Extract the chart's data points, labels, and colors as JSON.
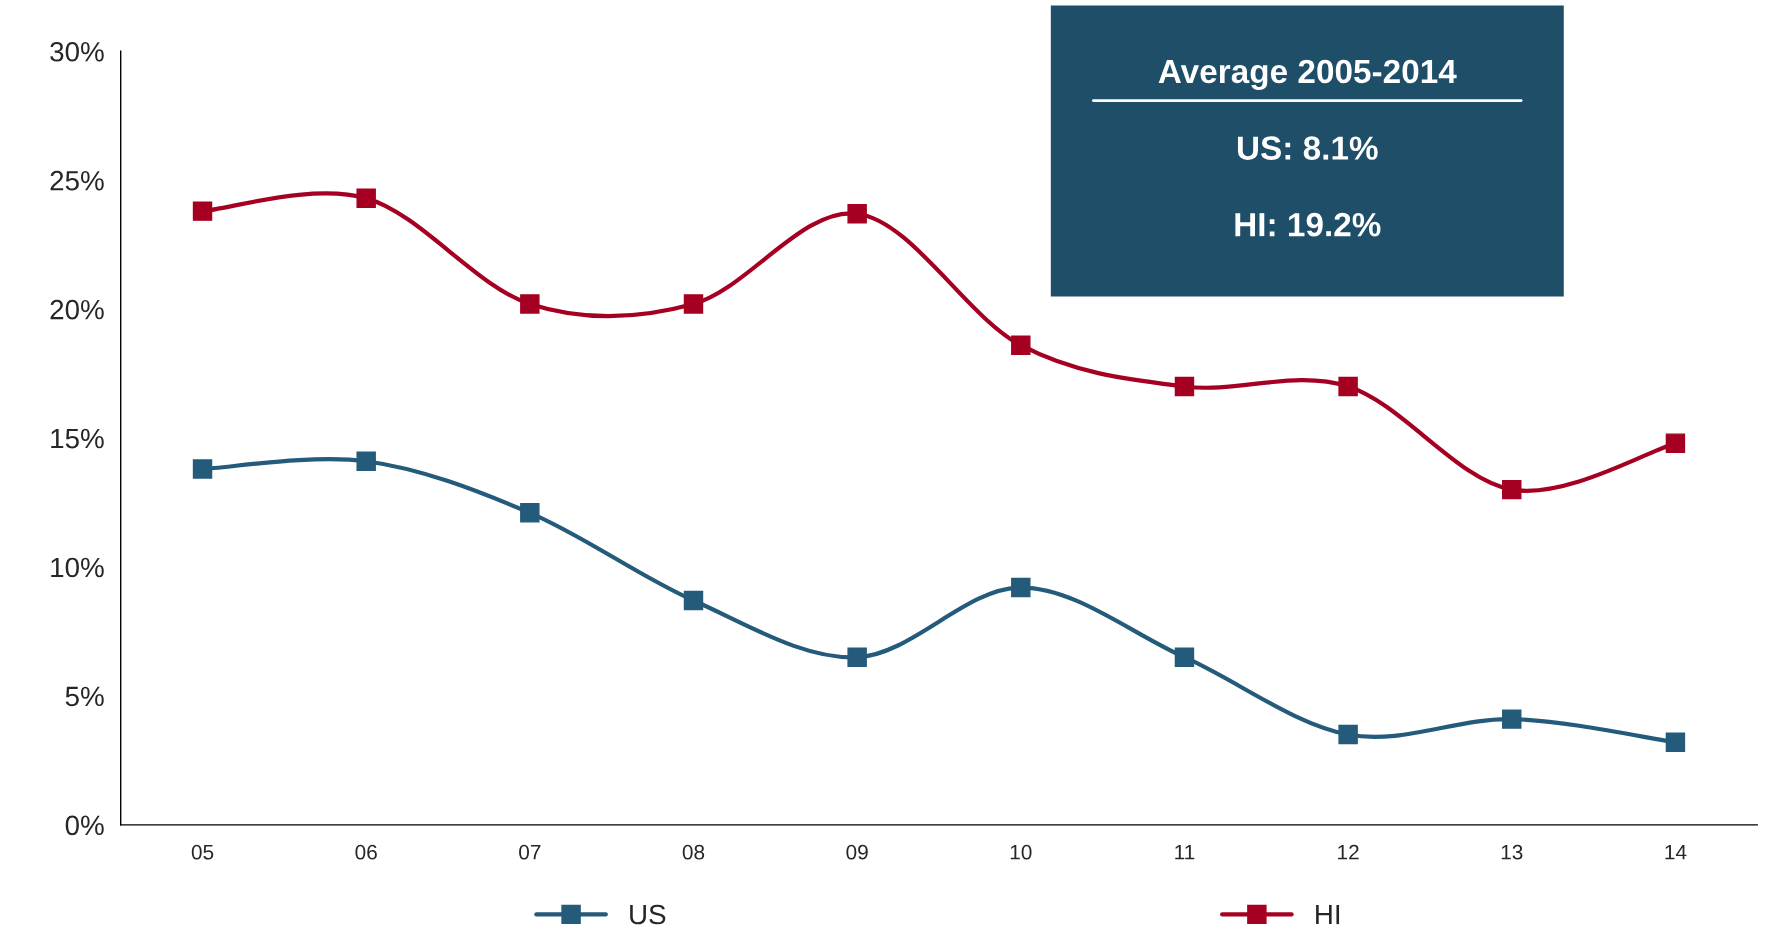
{
  "chart_data": {
    "type": "line",
    "categories": [
      "05",
      "06",
      "07",
      "08",
      "09",
      "10",
      "11",
      "12",
      "13",
      "14"
    ],
    "series": [
      {
        "name": "US",
        "color": "#245a7a",
        "values": [
          13.8,
          14.1,
          12.1,
          8.7,
          6.5,
          9.2,
          6.5,
          3.5,
          4.1,
          3.2
        ]
      },
      {
        "name": "HI",
        "color": "#a50021",
        "values": [
          23.8,
          24.3,
          20.2,
          20.2,
          23.7,
          18.6,
          17.0,
          17.0,
          13.0,
          14.8
        ]
      }
    ],
    "ylim": [
      0,
      30
    ],
    "yticks": [
      {
        "value": 0,
        "label": "0%"
      },
      {
        "value": 5,
        "label": "5%"
      },
      {
        "value": 10,
        "label": "10%"
      },
      {
        "value": 15,
        "label": "15%"
      },
      {
        "value": 20,
        "label": "20%"
      },
      {
        "value": 25,
        "label": "25%"
      },
      {
        "value": 30,
        "label": "30%"
      }
    ],
    "annotations": [
      "Average 2005-2014",
      "US: 8.1%",
      "HI: 19.2%"
    ],
    "marker": "square",
    "line_style": "solid",
    "grid": false,
    "legend": "bottom"
  }
}
